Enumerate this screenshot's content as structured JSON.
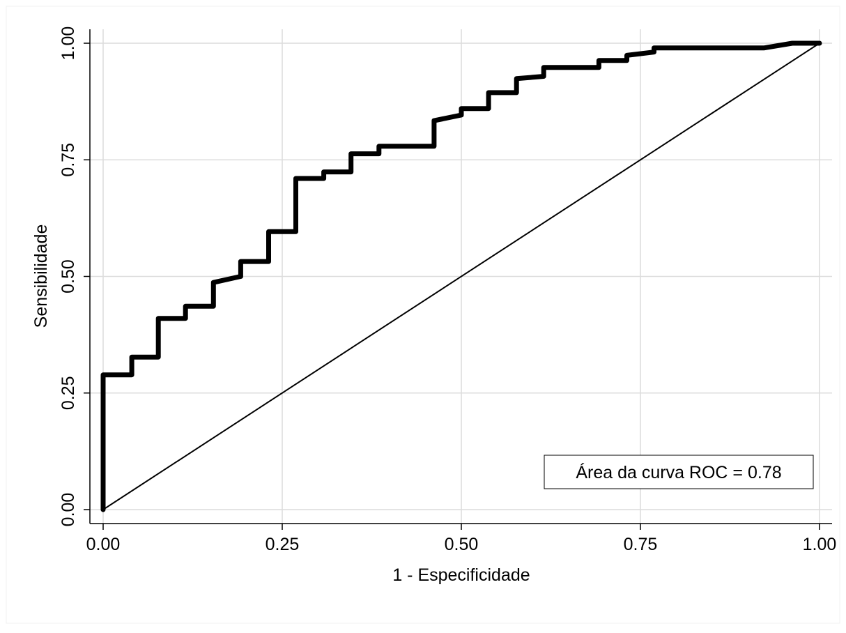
{
  "chart_data": {
    "type": "line",
    "title": "",
    "xlabel": "1 - Especificidade",
    "ylabel": "Sensibilidade",
    "xlim": [
      0,
      1
    ],
    "ylim": [
      0,
      1
    ],
    "x_ticks": [
      "0.00",
      "0.25",
      "0.50",
      "0.75",
      "1.00"
    ],
    "y_ticks": [
      "0.00",
      "0.25",
      "0.50",
      "0.75",
      "1.00"
    ],
    "tick_values": [
      0,
      0.25,
      0.5,
      0.75,
      1
    ],
    "grid": true,
    "annotation": "Área da curva ROC = 0.78",
    "annotation_placement": "bottom-right",
    "colors": {
      "curve": "#000000",
      "reference": "#000000",
      "grid": "#dcdcdc",
      "axis": "#000000"
    },
    "series": [
      {
        "x": [
          0,
          0,
          0.04,
          0.04,
          0.077,
          0.077,
          0.115,
          0.115,
          0.154,
          0.154,
          0.192,
          0.192,
          0.231,
          0.231,
          0.269,
          0.269,
          0.308,
          0.308,
          0.346,
          0.346,
          0.385,
          0.385,
          0.462,
          0.462,
          0.5,
          0.5,
          0.538,
          0.538,
          0.577,
          0.577,
          0.615,
          0.615,
          0.692,
          0.692,
          0.731,
          0.731,
          0.769,
          0.769,
          0.923,
          0.962,
          1.0
        ],
        "y": [
          0,
          0.289,
          0.289,
          0.327,
          0.327,
          0.41,
          0.41,
          0.436,
          0.436,
          0.487,
          0.5,
          0.532,
          0.532,
          0.596,
          0.596,
          0.71,
          0.71,
          0.724,
          0.724,
          0.763,
          0.763,
          0.779,
          0.779,
          0.834,
          0.846,
          0.86,
          0.86,
          0.894,
          0.894,
          0.924,
          0.929,
          0.948,
          0.948,
          0.963,
          0.963,
          0.974,
          0.981,
          0.99,
          0.99,
          1.0,
          1.0
        ]
      },
      {
        "x": [
          0,
          1
        ],
        "y": [
          0,
          1
        ]
      }
    ]
  }
}
